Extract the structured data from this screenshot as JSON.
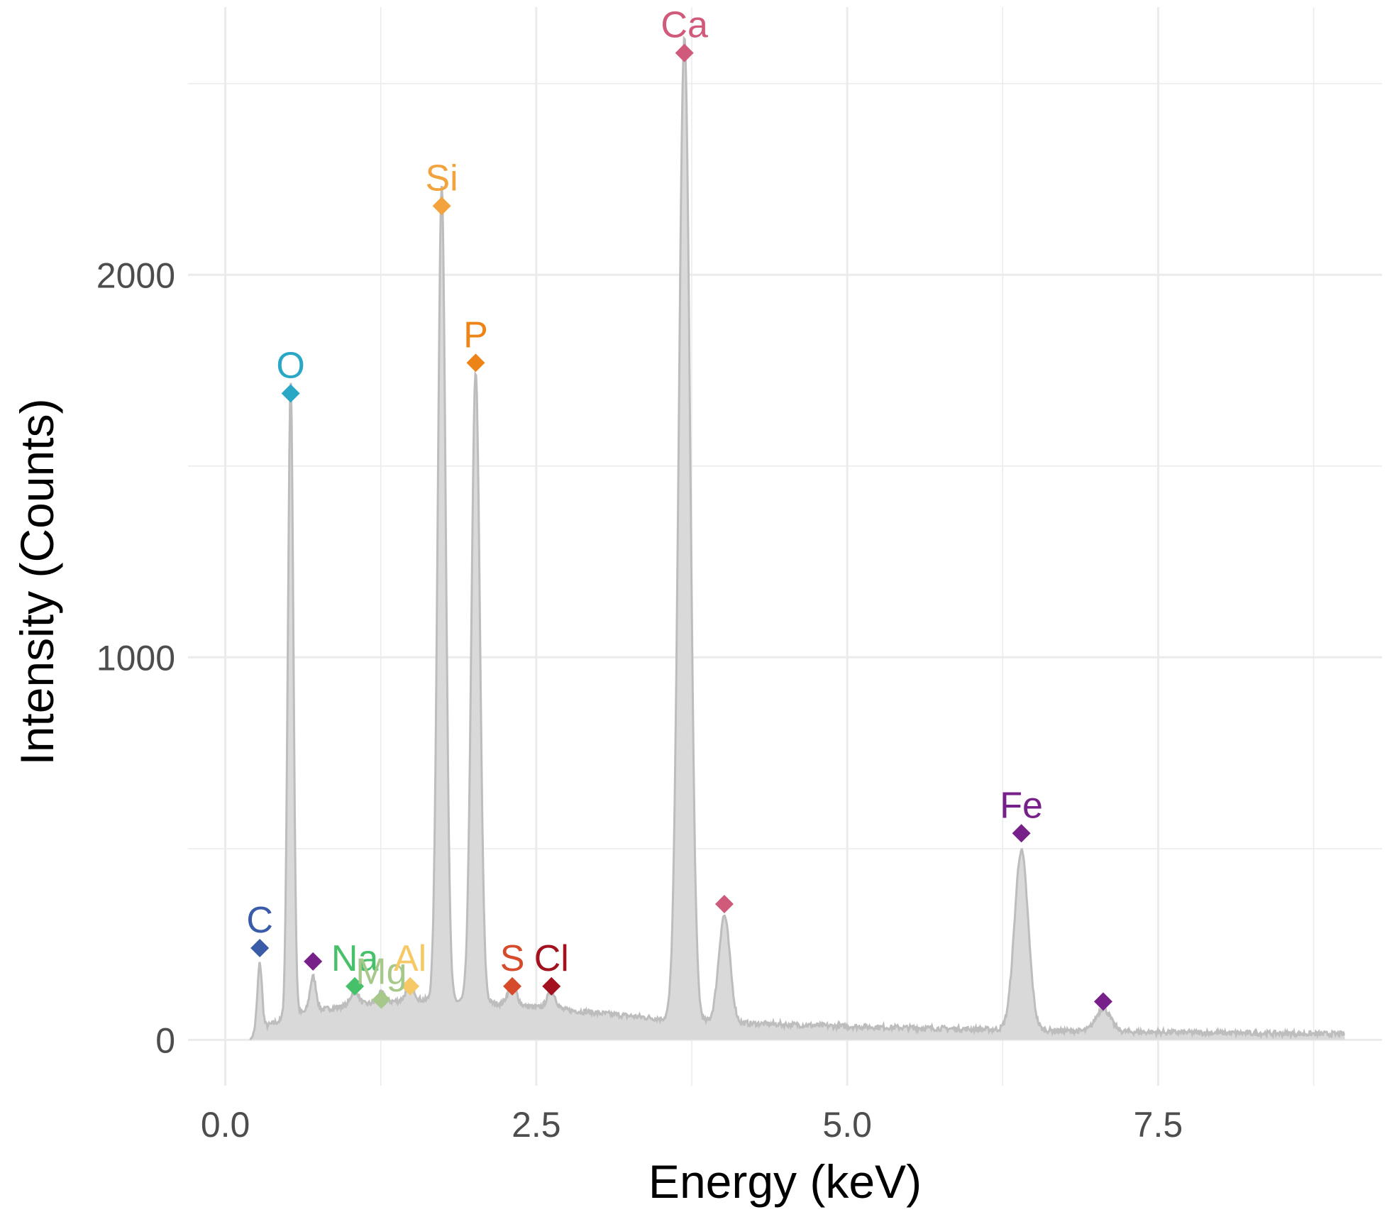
{
  "chart_data": {
    "type": "area",
    "title": "",
    "xlabel": "Energy (keV)",
    "ylabel": "Intensity (Counts)",
    "xlim": [
      -0.3,
      9.3
    ],
    "ylim": [
      -120,
      2700
    ],
    "x_ticks": [
      0,
      2.5,
      5,
      7.5
    ],
    "x_tick_labels": [
      "0.0",
      "2.5",
      "5.0",
      "7.5"
    ],
    "y_ticks": [
      0,
      1000,
      2000
    ],
    "y_tick_labels": [
      "0",
      "1000",
      "2000"
    ],
    "grid": true,
    "spectrum": {
      "x_range": [
        0.2,
        9.0
      ],
      "baseline": [
        [
          0.2,
          20
        ],
        [
          0.6,
          70
        ],
        [
          1.0,
          90
        ],
        [
          1.5,
          105
        ],
        [
          2.0,
          100
        ],
        [
          2.5,
          85
        ],
        [
          3.0,
          70
        ],
        [
          3.5,
          55
        ],
        [
          4.0,
          45
        ],
        [
          5.0,
          35
        ],
        [
          6.0,
          28
        ],
        [
          7.0,
          22
        ],
        [
          8.0,
          18
        ],
        [
          9.0,
          15
        ]
      ],
      "peaks": [
        {
          "center": 0.277,
          "height": 170,
          "width": 0.018
        },
        {
          "center": 0.525,
          "height": 1660,
          "width": 0.022
        },
        {
          "center": 0.705,
          "height": 90,
          "width": 0.025
        },
        {
          "center": 1.041,
          "height": 40,
          "width": 0.03
        },
        {
          "center": 1.254,
          "height": 25,
          "width": 0.03
        },
        {
          "center": 1.486,
          "height": 45,
          "width": 0.03
        },
        {
          "center": 1.74,
          "height": 2130,
          "width": 0.032
        },
        {
          "center": 2.013,
          "height": 1650,
          "width": 0.034
        },
        {
          "center": 2.307,
          "height": 55,
          "width": 0.035
        },
        {
          "center": 2.622,
          "height": 45,
          "width": 0.035
        },
        {
          "center": 3.691,
          "height": 2570,
          "width": 0.045
        },
        {
          "center": 4.012,
          "height": 280,
          "width": 0.045
        },
        {
          "center": 6.4,
          "height": 470,
          "width": 0.055
        },
        {
          "center": 7.058,
          "height": 60,
          "width": 0.058
        }
      ]
    },
    "markers": [
      {
        "element": "C",
        "x": 0.277,
        "y": 240,
        "color": "#3a5ba8",
        "label": "C"
      },
      {
        "element": "O",
        "x": 0.525,
        "y": 1690,
        "color": "#2aa7c5",
        "label": "O"
      },
      {
        "element": "Fe",
        "x": 0.705,
        "y": 205,
        "color": "#77208a",
        "label": ""
      },
      {
        "element": "Na",
        "x": 1.041,
        "y": 140,
        "color": "#47c06a",
        "label": "Na"
      },
      {
        "element": "Mg",
        "x": 1.254,
        "y": 105,
        "color": "#a6c88a",
        "label": "Mg"
      },
      {
        "element": "Al",
        "x": 1.486,
        "y": 140,
        "color": "#f6c866",
        "label": "Al"
      },
      {
        "element": "Si",
        "x": 1.74,
        "y": 2180,
        "color": "#f2a33d",
        "label": "Si"
      },
      {
        "element": "P",
        "x": 2.013,
        "y": 1770,
        "color": "#ec8418",
        "label": "P"
      },
      {
        "element": "S",
        "x": 2.307,
        "y": 140,
        "color": "#d64b2c",
        "label": "S"
      },
      {
        "element": "Cl",
        "x": 2.622,
        "y": 140,
        "color": "#a3101e",
        "label": "Cl"
      },
      {
        "element": "Ca",
        "x": 3.691,
        "y": 2580,
        "color": "#d05a7a",
        "label": "Ca"
      },
      {
        "element": "Ca",
        "x": 4.012,
        "y": 355,
        "color": "#d05a7a",
        "label": ""
      },
      {
        "element": "Fe",
        "x": 6.4,
        "y": 540,
        "color": "#77208a",
        "label": "Fe"
      },
      {
        "element": "Fe",
        "x": 7.058,
        "y": 100,
        "color": "#77208a",
        "label": ""
      }
    ],
    "fill_color": "#d9d9d9",
    "line_color": "#bdbdbd"
  }
}
